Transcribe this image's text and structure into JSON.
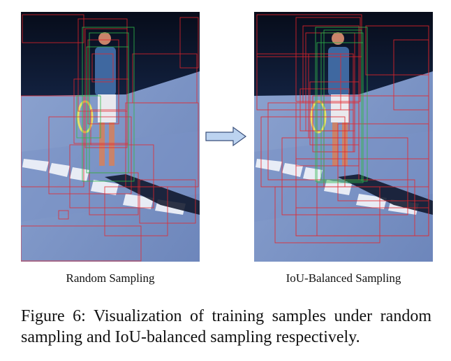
{
  "panels": [
    {
      "label": "Random Sampling"
    },
    {
      "label": "IoU-Balanced Sampling"
    }
  ],
  "caption": "Figure 6: Visualization of training samples under random sampling and IoU-balanced sampling respectively.",
  "colors": {
    "court": "#7f95c4",
    "sky": "#0b1326",
    "player_shirt": "#3f68a0",
    "sample_box_negative": "#e8242a",
    "sample_box_positive": "#2fb84a",
    "arrow_fill": "#bcd3f0",
    "arrow_stroke": "#3a4f7a"
  },
  "icons": [
    "right-arrow-icon"
  ]
}
